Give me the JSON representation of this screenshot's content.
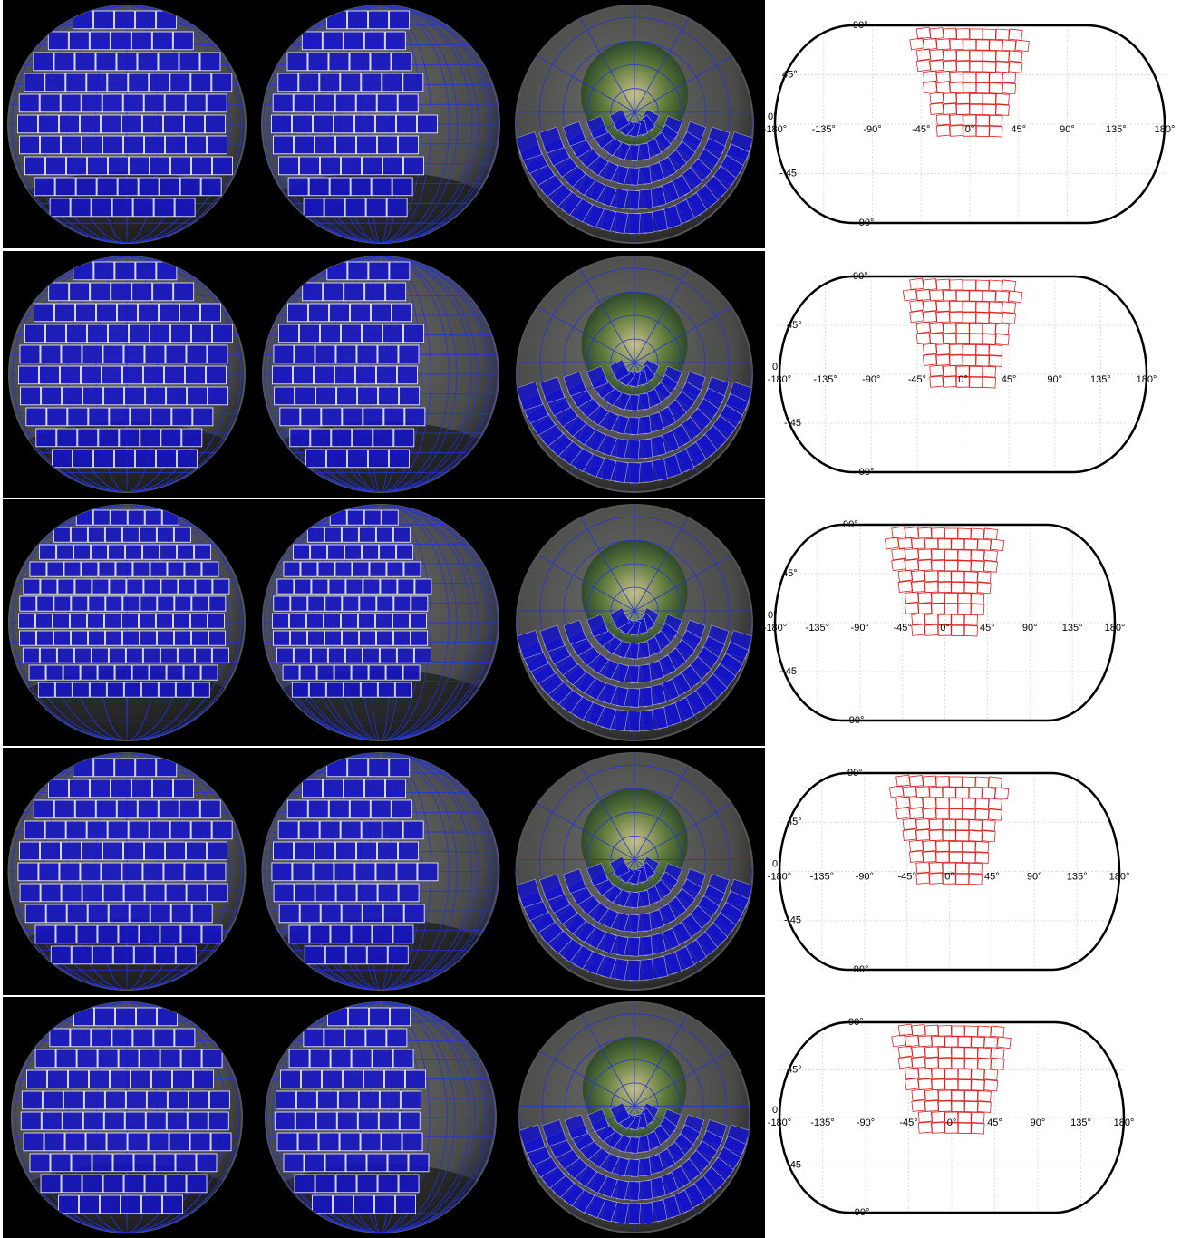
{
  "panels": [
    {
      "map": {
        "lat_labels": [
          "90°",
          "45°",
          "0°",
          "- 45",
          "- 90°"
        ],
        "lon_labels": [
          "-180°",
          "-135°",
          "-90°",
          "-45°",
          "0°",
          "45°",
          "90°",
          "135°",
          "180°"
        ]
      }
    },
    {
      "map": {
        "lat_labels": [
          "90°",
          "45°",
          "0°",
          "- 45",
          "- 90°"
        ],
        "lon_labels": [
          "-180°",
          "-135°",
          "-90°",
          "-45°",
          "0°",
          "45°",
          "90°",
          "135°",
          "180°"
        ]
      }
    },
    {
      "map": {
        "lat_labels": [
          "90°",
          "45°",
          "0°",
          "- 45",
          "- 90°"
        ],
        "lon_labels": [
          "-180°",
          "-135°",
          "-90°",
          "-45°",
          "0°",
          "45°",
          "90°",
          "135°",
          "180°"
        ]
      }
    },
    {
      "map": {
        "lat_labels": [
          "90°",
          "45°",
          "0°",
          "- 45",
          "- 90°"
        ],
        "lon_labels": [
          "-180°",
          "-135°",
          "-90°",
          "-45°",
          "0°",
          "45°",
          "90°",
          "135°",
          "180°"
        ]
      }
    },
    {
      "map": {
        "lat_labels": [
          "90°",
          "45°",
          "0°",
          "- 45",
          "- 90°"
        ],
        "lon_labels": [
          "-180°",
          "-135°",
          "-90°",
          "-45°",
          "0°",
          "45°",
          "90°",
          "135°",
          "180°"
        ]
      }
    }
  ]
}
